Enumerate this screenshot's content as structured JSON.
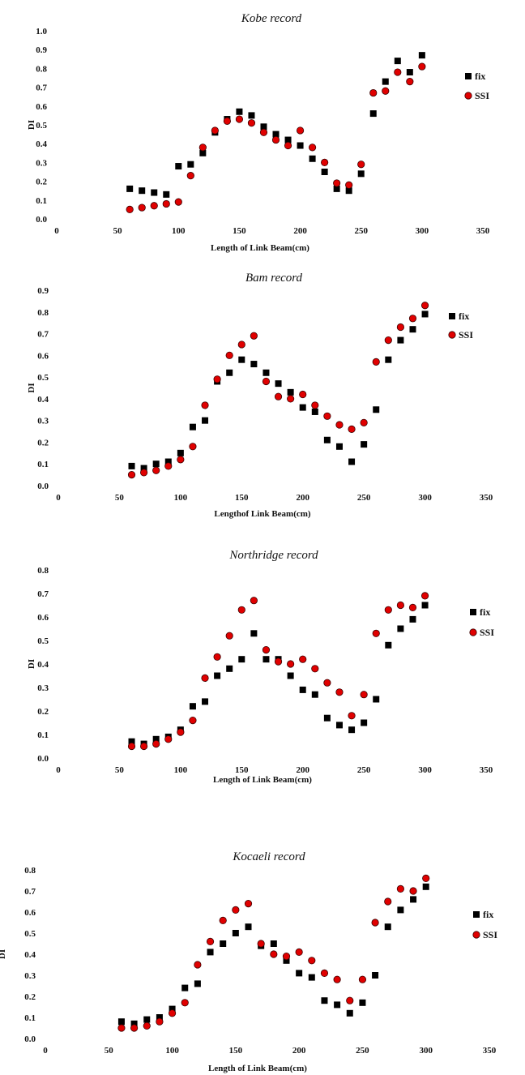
{
  "chart_data": [
    {
      "type": "scatter",
      "title": "Kobe record",
      "xlabel": "Length of Link Beam(cm)",
      "ylabel": "DI",
      "xlim": [
        0,
        350
      ],
      "ylim": [
        0,
        1.0
      ],
      "xticks": [
        "0",
        "50",
        "100",
        "150",
        "200",
        "250",
        "300",
        "350"
      ],
      "yticks": [
        "0.0",
        "0.1",
        "0.2",
        "0.3",
        "0.4",
        "0.5",
        "0.6",
        "0.7",
        "0.8",
        "0.9",
        "1.0"
      ],
      "legend_position": "right",
      "grid": false,
      "series": [
        {
          "name": "fix",
          "marker": "square",
          "color": "#000000",
          "x": [
            60,
            70,
            80,
            90,
            100,
            110,
            120,
            130,
            140,
            150,
            160,
            170,
            180,
            190,
            200,
            210,
            220,
            230,
            240,
            250,
            260,
            270,
            280,
            290,
            300
          ],
          "y": [
            0.16,
            0.15,
            0.14,
            0.13,
            0.28,
            0.29,
            0.35,
            0.46,
            0.53,
            0.57,
            0.55,
            0.49,
            0.45,
            0.42,
            0.39,
            0.32,
            0.25,
            0.16,
            0.15,
            0.24,
            0.56,
            0.73,
            0.84,
            0.78,
            0.87
          ]
        },
        {
          "name": "SSI",
          "marker": "circle",
          "color": "#e00000",
          "x": [
            60,
            70,
            80,
            90,
            100,
            110,
            120,
            130,
            140,
            150,
            160,
            170,
            180,
            190,
            200,
            210,
            220,
            230,
            240,
            250,
            260,
            270,
            280,
            290,
            300
          ],
          "y": [
            0.05,
            0.06,
            0.07,
            0.08,
            0.09,
            0.23,
            0.38,
            0.47,
            0.52,
            0.53,
            0.51,
            0.46,
            0.42,
            0.39,
            0.47,
            0.38,
            0.3,
            0.19,
            0.18,
            0.29,
            0.67,
            0.68,
            0.78,
            0.73,
            0.81
          ]
        }
      ]
    },
    {
      "type": "scatter",
      "title": "Bam record",
      "xlabel": "Lengthof Link Beam(cm)",
      "ylabel": "DI",
      "xlim": [
        0,
        350
      ],
      "ylim": [
        0,
        0.9
      ],
      "xticks": [
        "0",
        "50",
        "100",
        "150",
        "200",
        "250",
        "300",
        "350"
      ],
      "yticks": [
        "0.0",
        "0.1",
        "0.2",
        "0.3",
        "0.4",
        "0.5",
        "0.6",
        "0.7",
        "0.8",
        "0.9"
      ],
      "legend_position": "right",
      "grid": false,
      "series": [
        {
          "name": "fix",
          "marker": "square",
          "color": "#000000",
          "x": [
            60,
            70,
            80,
            90,
            100,
            110,
            120,
            130,
            140,
            150,
            160,
            170,
            180,
            190,
            200,
            210,
            220,
            230,
            240,
            250,
            260,
            270,
            280,
            290,
            300
          ],
          "y": [
            0.09,
            0.08,
            0.1,
            0.11,
            0.15,
            0.27,
            0.3,
            0.48,
            0.52,
            0.58,
            0.56,
            0.52,
            0.47,
            0.43,
            0.36,
            0.34,
            0.21,
            0.18,
            0.11,
            0.19,
            0.35,
            0.58,
            0.67,
            0.72,
            0.79
          ]
        },
        {
          "name": "SSI",
          "marker": "circle",
          "color": "#e00000",
          "x": [
            60,
            70,
            80,
            90,
            100,
            110,
            120,
            130,
            140,
            150,
            160,
            170,
            180,
            190,
            200,
            210,
            220,
            230,
            240,
            250,
            260,
            270,
            280,
            290,
            300
          ],
          "y": [
            0.05,
            0.06,
            0.07,
            0.09,
            0.12,
            0.18,
            0.37,
            0.49,
            0.6,
            0.65,
            0.69,
            0.48,
            0.41,
            0.4,
            0.42,
            0.37,
            0.32,
            0.28,
            0.26,
            0.29,
            0.57,
            0.67,
            0.73,
            0.77,
            0.83
          ]
        }
      ]
    },
    {
      "type": "scatter",
      "title": "Northridge record",
      "xlabel": "Length of Link Beam(cm)",
      "ylabel": "DI",
      "xlim": [
        0,
        350
      ],
      "ylim": [
        0,
        0.8
      ],
      "xticks": [
        "0",
        "50",
        "100",
        "150",
        "200",
        "250",
        "300",
        "350"
      ],
      "yticks": [
        "0.0",
        "0.1",
        "0.2",
        "0.3",
        "0.4",
        "0.5",
        "0.6",
        "0.7",
        "0.8"
      ],
      "legend_position": "right",
      "grid": false,
      "series": [
        {
          "name": "fix",
          "marker": "square",
          "color": "#000000",
          "x": [
            60,
            70,
            80,
            90,
            100,
            110,
            120,
            130,
            140,
            150,
            160,
            170,
            180,
            190,
            200,
            210,
            220,
            230,
            240,
            250,
            260,
            270,
            280,
            290,
            300
          ],
          "y": [
            0.07,
            0.06,
            0.08,
            0.09,
            0.12,
            0.22,
            0.24,
            0.35,
            0.38,
            0.42,
            0.53,
            0.42,
            0.42,
            0.35,
            0.29,
            0.27,
            0.17,
            0.14,
            0.12,
            0.15,
            0.25,
            0.48,
            0.55,
            0.59,
            0.65
          ]
        },
        {
          "name": "SSI",
          "marker": "circle",
          "color": "#e00000",
          "x": [
            60,
            70,
            80,
            90,
            100,
            110,
            120,
            130,
            140,
            150,
            160,
            170,
            180,
            190,
            200,
            210,
            220,
            230,
            240,
            250,
            260,
            270,
            280,
            290,
            300
          ],
          "y": [
            0.05,
            0.05,
            0.06,
            0.08,
            0.11,
            0.16,
            0.34,
            0.43,
            0.52,
            0.63,
            0.67,
            0.46,
            0.41,
            0.4,
            0.42,
            0.38,
            0.32,
            0.28,
            0.18,
            0.27,
            0.53,
            0.63,
            0.65,
            0.64,
            0.69
          ]
        }
      ]
    },
    {
      "type": "scatter",
      "title": "Kocaeli record",
      "xlabel": "Length of Link Beam(cm)",
      "ylabel": "DI",
      "xlim": [
        0,
        350
      ],
      "ylim": [
        0,
        0.8
      ],
      "xticks": [
        "0",
        "50",
        "100",
        "150",
        "200",
        "250",
        "300",
        "350"
      ],
      "yticks": [
        "0.0",
        "0.1",
        "0.2",
        "0.3",
        "0.4",
        "0.5",
        "0.6",
        "0.7",
        "0.8"
      ],
      "legend_position": "right",
      "grid": false,
      "series": [
        {
          "name": "fix",
          "marker": "square",
          "color": "#000000",
          "x": [
            60,
            70,
            80,
            90,
            100,
            110,
            120,
            130,
            140,
            150,
            160,
            170,
            180,
            190,
            200,
            210,
            220,
            230,
            240,
            250,
            260,
            270,
            280,
            290,
            300
          ],
          "y": [
            0.08,
            0.07,
            0.09,
            0.1,
            0.14,
            0.24,
            0.26,
            0.41,
            0.45,
            0.5,
            0.53,
            0.44,
            0.45,
            0.37,
            0.31,
            0.29,
            0.18,
            0.16,
            0.12,
            0.17,
            0.3,
            0.53,
            0.61,
            0.66,
            0.72
          ]
        },
        {
          "name": "SSI",
          "marker": "circle",
          "color": "#e00000",
          "x": [
            60,
            70,
            80,
            90,
            100,
            110,
            120,
            130,
            140,
            150,
            160,
            170,
            180,
            190,
            200,
            210,
            220,
            230,
            240,
            250,
            260,
            270,
            280,
            290,
            300
          ],
          "y": [
            0.05,
            0.05,
            0.06,
            0.08,
            0.12,
            0.17,
            0.35,
            0.46,
            0.56,
            0.61,
            0.64,
            0.45,
            0.4,
            0.39,
            0.41,
            0.37,
            0.31,
            0.28,
            0.18,
            0.28,
            0.55,
            0.65,
            0.71,
            0.7,
            0.76
          ]
        }
      ]
    }
  ]
}
